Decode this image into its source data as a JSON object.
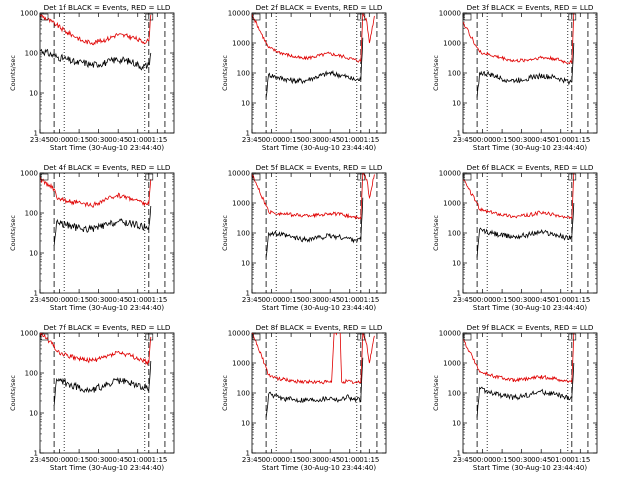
{
  "figure": {
    "xlabel": "Start Time (30-Aug-10 23:44:40)",
    "ylabel": "Counts/sec",
    "series_names": [
      "Events",
      "LLD"
    ],
    "colors": {
      "events": "#000000",
      "lld": "#e00000",
      "axes": "#000000"
    },
    "x_ticks": [
      "23:45",
      "00:00",
      "00:15",
      "00:30",
      "00:45",
      "01:00",
      "01:15"
    ]
  },
  "chart_data": [
    {
      "type": "line",
      "title": "Det 1f BLACK = Events, RED = LLD",
      "y_scale": "log",
      "x": [
        -0.33,
        0,
        0.2,
        0.4,
        0.5,
        0.7,
        1.0,
        1.2,
        1.5,
        1.7,
        1.83,
        1.87,
        1.95
      ],
      "series": [
        {
          "name": "Events",
          "values": [
            120,
            80,
            70,
            55,
            60,
            50,
            58,
            70,
            60,
            45,
            50,
            100,
            null
          ]
        },
        {
          "name": "LLD",
          "values": [
            900,
            500,
            330,
            250,
            200,
            180,
            220,
            290,
            250,
            190,
            200,
            900,
            null
          ]
        }
      ],
      "dashed_x": [
        -0.05,
        1.83,
        2.15
      ],
      "dotted_x": [
        0.15,
        1.75
      ],
      "ylim": [
        1,
        1000
      ],
      "grid": false
    },
    {
      "type": "line",
      "title": "Det 2f BLACK = Events, RED = LLD",
      "y_scale": "log",
      "x": [
        -0.33,
        -0.05,
        0.0,
        0.2,
        0.5,
        0.7,
        0.9,
        1.2,
        1.5,
        1.7,
        1.83,
        1.87,
        1.95,
        2.0,
        2.1
      ],
      "series": [
        {
          "name": "Events",
          "values": [
            null,
            15,
            90,
            70,
            55,
            55,
            70,
            100,
            80,
            60,
            60,
            1500,
            null,
            null,
            null
          ]
        },
        {
          "name": "LLD",
          "values": [
            9000,
            1000,
            700,
            500,
            350,
            300,
            350,
            450,
            350,
            280,
            250,
            10000,
            5000,
            1000,
            8000
          ]
        }
      ],
      "dashed_x": [
        -0.05,
        1.83,
        2.15
      ],
      "dotted_x": [
        0.15,
        1.75
      ],
      "ylim": [
        1,
        10000
      ],
      "grid": false
    },
    {
      "type": "line",
      "title": "Det 3f BLACK = Events, RED = LLD",
      "y_scale": "log",
      "x": [
        -0.33,
        -0.05,
        0.0,
        0.2,
        0.5,
        0.7,
        1.0,
        1.2,
        1.5,
        1.7,
        1.83,
        1.87
      ],
      "series": [
        {
          "name": "Events",
          "values": [
            null,
            15,
            100,
            90,
            60,
            55,
            70,
            80,
            70,
            55,
            50,
            1000
          ]
        },
        {
          "name": "LLD",
          "values": [
            5000,
            700,
            500,
            400,
            300,
            250,
            280,
            330,
            300,
            230,
            220,
            10000
          ]
        }
      ],
      "dashed_x": [
        -0.05,
        1.83,
        2.15
      ],
      "dotted_x": [
        0.15,
        1.75
      ],
      "ylim": [
        1,
        10000
      ],
      "grid": false
    },
    {
      "type": "line",
      "title": "Det 4f BLACK = Events, RED = LLD",
      "y_scale": "log",
      "x": [
        -0.33,
        -0.05,
        0.0,
        0.2,
        0.5,
        0.7,
        1.0,
        1.2,
        1.5,
        1.7,
        1.83,
        1.87
      ],
      "series": [
        {
          "name": "Events",
          "values": [
            null,
            15,
            60,
            50,
            40,
            40,
            50,
            60,
            55,
            45,
            45,
            150
          ]
        },
        {
          "name": "LLD",
          "values": [
            700,
            400,
            250,
            200,
            170,
            150,
            220,
            280,
            230,
            180,
            170,
            700
          ]
        }
      ],
      "dashed_x": [
        -0.05,
        1.83,
        2.15
      ],
      "dotted_x": [
        0.15,
        1.75
      ],
      "ylim": [
        1,
        1000
      ],
      "grid": false
    },
    {
      "type": "line",
      "title": "Det 5f BLACK = Events, RED = LLD",
      "y_scale": "log",
      "x": [
        -0.33,
        -0.05,
        0.0,
        0.2,
        0.5,
        0.7,
        1.0,
        1.2,
        1.5,
        1.7,
        1.83,
        1.87,
        1.95,
        2.0,
        2.1
      ],
      "series": [
        {
          "name": "Events",
          "values": [
            null,
            15,
            100,
            90,
            70,
            60,
            70,
            80,
            70,
            60,
            60,
            1500,
            null,
            null,
            null
          ]
        },
        {
          "name": "LLD",
          "values": [
            9000,
            800,
            500,
            450,
            400,
            380,
            400,
            450,
            400,
            330,
            300,
            10000,
            6000,
            1500,
            9000
          ]
        }
      ],
      "dashed_x": [
        -0.05,
        1.83,
        2.15
      ],
      "dotted_x": [
        0.15,
        1.75
      ],
      "ylim": [
        1,
        10000
      ],
      "grid": false
    },
    {
      "type": "line",
      "title": "Det 6f BLACK = Events, RED = LLD",
      "y_scale": "log",
      "x": [
        -0.33,
        -0.05,
        0.0,
        0.2,
        0.5,
        0.7,
        1.0,
        1.2,
        1.5,
        1.7,
        1.83,
        1.87
      ],
      "series": [
        {
          "name": "Events",
          "values": [
            null,
            15,
            130,
            100,
            80,
            75,
            90,
            110,
            90,
            70,
            75,
            1000
          ]
        },
        {
          "name": "LLD",
          "values": [
            6000,
            1000,
            600,
            500,
            400,
            350,
            400,
            480,
            400,
            330,
            300,
            10000
          ]
        }
      ],
      "dashed_x": [
        -0.05,
        1.83,
        2.15
      ],
      "dotted_x": [
        0.15,
        1.75
      ],
      "ylim": [
        1,
        10000
      ],
      "grid": false
    },
    {
      "type": "line",
      "title": "Det 7f BLACK = Events, RED = LLD",
      "y_scale": "log",
      "x": [
        -0.33,
        -0.05,
        0.0,
        0.2,
        0.5,
        0.7,
        1.0,
        1.2,
        1.5,
        1.7,
        1.83,
        1.87
      ],
      "series": [
        {
          "name": "Events",
          "values": [
            null,
            15,
            70,
            55,
            40,
            38,
            50,
            65,
            55,
            45,
            40,
            200
          ]
        },
        {
          "name": "LLD",
          "values": [
            1000,
            500,
            350,
            280,
            220,
            200,
            260,
            330,
            260,
            200,
            180,
            800
          ]
        }
      ],
      "dashed_x": [
        -0.05,
        1.83,
        2.15
      ],
      "dotted_x": [
        0.15,
        1.75
      ],
      "ylim": [
        1,
        1000
      ],
      "grid": false
    },
    {
      "type": "line",
      "title": "Det 8f BLACK = Events, RED = LLD",
      "y_scale": "log",
      "x": [
        -0.33,
        -0.3,
        -0.05,
        0.0,
        0.2,
        0.5,
        0.9,
        1.25,
        1.3,
        1.42,
        1.45,
        1.55,
        1.7,
        1.83,
        1.87,
        1.95,
        2.0,
        2.1
      ],
      "series": [
        {
          "name": "Events",
          "values": [
            null,
            null,
            15,
            90,
            70,
            60,
            60,
            70,
            65,
            60,
            60,
            80,
            60,
            60,
            1500,
            null,
            null,
            null
          ]
        },
        {
          "name": "LLD",
          "values": [
            10000,
            8000,
            700,
            400,
            300,
            250,
            230,
            230,
            10000,
            10000,
            230,
            250,
            220,
            220,
            10000,
            4000,
            1000,
            8000
          ]
        }
      ],
      "dashed_x": [
        -0.05,
        1.83,
        2.15
      ],
      "dotted_x": [
        0.15,
        1.75
      ],
      "ylim": [
        1,
        10000
      ],
      "grid": false
    },
    {
      "type": "line",
      "title": "Det 9f BLACK = Events, RED = LLD",
      "y_scale": "log",
      "x": [
        -0.33,
        -0.05,
        0.0,
        0.2,
        0.5,
        0.7,
        1.0,
        1.2,
        1.5,
        1.7,
        1.83,
        1.87
      ],
      "series": [
        {
          "name": "Events",
          "values": [
            null,
            15,
            150,
            100,
            80,
            70,
            90,
            110,
            90,
            70,
            70,
            1000
          ]
        },
        {
          "name": "LLD",
          "values": [
            6000,
            800,
            500,
            400,
            300,
            260,
            300,
            350,
            300,
            250,
            230,
            10000
          ]
        }
      ],
      "dashed_x": [
        -0.05,
        1.83,
        2.15
      ],
      "dotted_x": [
        0.15,
        1.75
      ],
      "ylim": [
        1,
        10000
      ],
      "grid": false
    }
  ]
}
